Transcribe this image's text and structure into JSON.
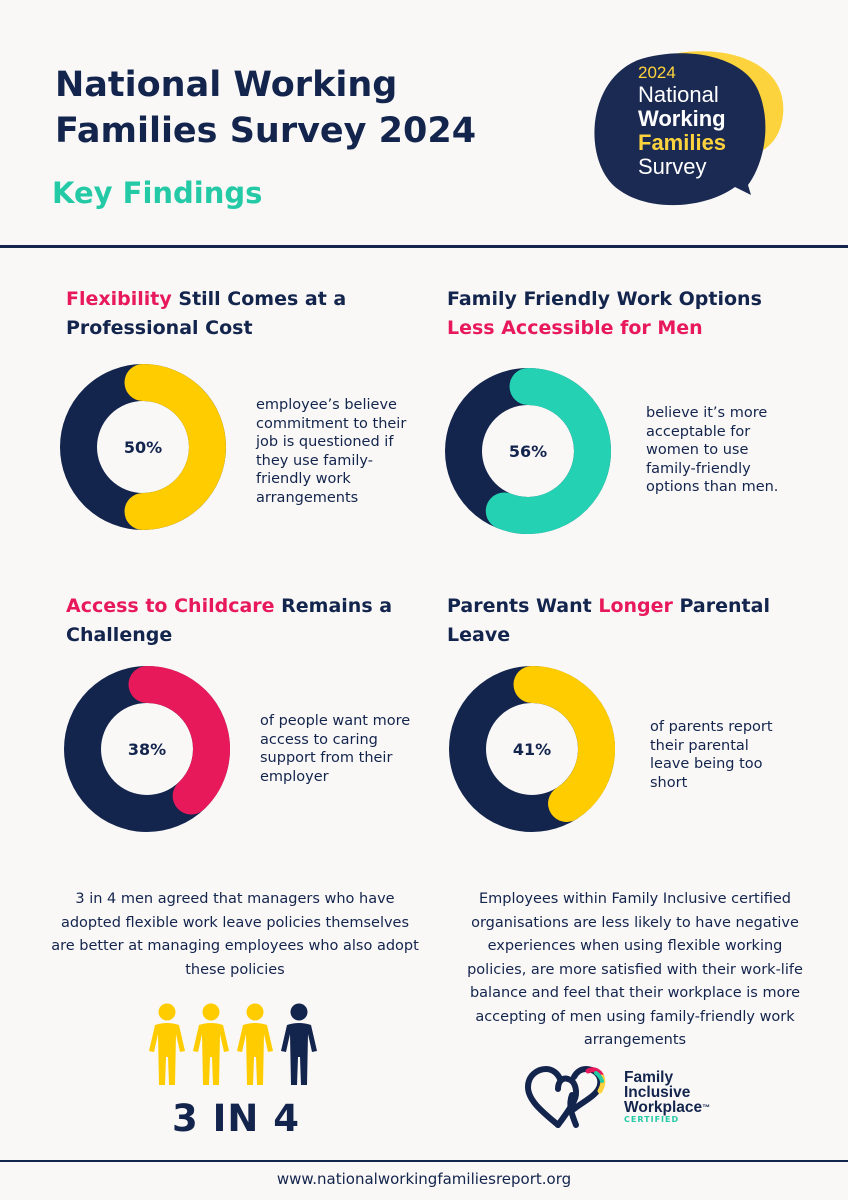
{
  "header": {
    "title_line1": "National Working",
    "title_line2": "Families Survey 2024",
    "subtitle": "Key Findings"
  },
  "logo": {
    "year": "2024",
    "line1": "National",
    "line2": "Working",
    "line3": "Families",
    "line4": "Survey",
    "colors": {
      "navy": "#1b2a52",
      "yellow": "#fdd33d"
    }
  },
  "findings": [
    {
      "title_highlight": "Flexibility",
      "title_rest": " Still Comes at a Professional Cost",
      "percent_label": "50%",
      "percent": 50,
      "color": "#ffcc00",
      "description": "employee’s believe commitment to their job is questioned if they use family-friendly work arrangements"
    },
    {
      "title_prefix": "Family Friendly Work Options",
      "title_highlight": "Less Accessible for Men",
      "percent_label": "56%",
      "percent": 56,
      "color": "#24d1b3",
      "description": "believe it’s more acceptable for women to use family-friendly options than men."
    },
    {
      "title_highlight": "Access to Childcare",
      "title_rest": " Remains a Challenge",
      "percent_label": "38%",
      "percent": 38,
      "color": "#e8195a",
      "description": "of people want more access to caring support from their employer"
    },
    {
      "title_prefix": "Parents Want ",
      "title_highlight": "Longer",
      "title_rest": " Parental Leave",
      "percent_label": "41%",
      "percent": 41,
      "color": "#ffcc00",
      "description": "of parents report their parental leave being too short"
    }
  ],
  "ring_base_color": "#13244d",
  "bottom_left": {
    "text": "3 in 4 men agreed that managers who have adopted flexible work leave policies themselves are better at managing employees who also adopt these policies",
    "big_label": "3 IN 4",
    "people_highlighted": 3,
    "people_total": 4,
    "highlight_color": "#ffcc00",
    "base_color": "#13244d"
  },
  "bottom_right": {
    "text": "Employees within Family Inclusive certified organisations are less likely to have negative experiences when using flexible working policies, are more satisfied with their work-life balance and feel that their workplace is more accepting of men using family-friendly work arrangements",
    "badge_line1": "Family",
    "badge_line2": "Inclusive",
    "badge_line3": "Workplace",
    "badge_tm": "™",
    "badge_certified": "CERTIFIED"
  },
  "footer": {
    "url": "www.nationalworkingfamiliesreport.org"
  }
}
